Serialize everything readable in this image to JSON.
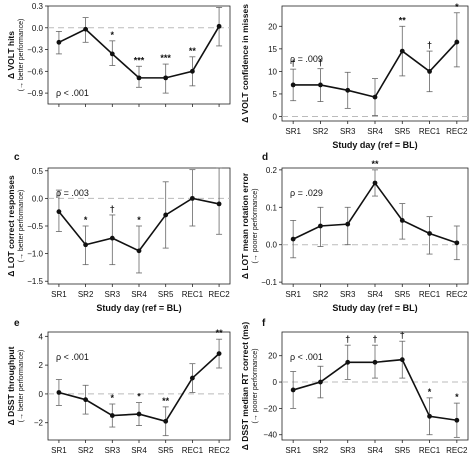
{
  "figure": {
    "xlabel_shared": "Study day (ref = BL)"
  },
  "chart_data": [
    {
      "id": "a",
      "letter": "",
      "type": "line",
      "categories": [
        "SR1",
        "SR2",
        "SR3",
        "SR4",
        "SR5",
        "REC1",
        "REC2"
      ],
      "values": [
        -0.2,
        -0.02,
        -0.36,
        -0.69,
        -0.69,
        -0.6,
        0.02
      ],
      "err_low": [
        -0.36,
        -0.2,
        -0.52,
        -0.82,
        -0.9,
        -0.8,
        -0.25
      ],
      "err_high": [
        -0.05,
        0.14,
        -0.18,
        -0.53,
        -0.5,
        -0.4,
        0.28
      ],
      "sig": [
        "",
        "",
        "*",
        "***",
        "***",
        "**",
        ""
      ],
      "ylim": [
        -1.05,
        0.3
      ],
      "yticks": [
        -0.9,
        -0.6,
        -0.3,
        0.0,
        0.3
      ],
      "yticklabels": [
        "−0.9",
        "−0.6",
        "−0.3",
        "0.0",
        "0.3"
      ],
      "ylabel": "Δ VOLT hits",
      "ylabel2": "(→ better performance)",
      "pvalue": "ρ < .001",
      "show_xticks": false,
      "show_xlabel": false
    },
    {
      "id": "b",
      "letter": "",
      "type": "line",
      "categories": [
        "SR1",
        "SR2",
        "SR3",
        "SR4",
        "SR5",
        "REC1",
        "REC2"
      ],
      "values": [
        7,
        7,
        5.8,
        4.3,
        14.5,
        10,
        16.5
      ],
      "err_low": [
        3.5,
        3.3,
        1.8,
        0.2,
        9,
        5.5,
        11
      ],
      "err_high": [
        10.5,
        10.6,
        9.8,
        8.4,
        20,
        14.5,
        23
      ],
      "sig": [
        "†",
        "†",
        "",
        "",
        "**",
        "†",
        "*"
      ],
      "ylim": [
        -1,
        24.5
      ],
      "yticks": [
        0,
        5,
        10,
        15,
        20
      ],
      "yticklabels": [
        "0",
        "5",
        "10",
        "15",
        "20"
      ],
      "ylabel": "Δ VOLT confidence in misses",
      "ylabel2": "",
      "pvalue": "ρ = .009",
      "show_xticks": true,
      "show_xlabel": true
    },
    {
      "id": "c",
      "letter": "c",
      "type": "line",
      "categories": [
        "SR1",
        "SR2",
        "SR3",
        "SR4",
        "SR5",
        "REC1",
        "REC2"
      ],
      "values": [
        -0.24,
        -0.84,
        -0.72,
        -0.95,
        -0.3,
        0.0,
        -0.1
      ],
      "err_low": [
        -0.6,
        -1.2,
        -1.2,
        -1.35,
        -0.9,
        -0.5,
        -0.65
      ],
      "err_high": [
        0.15,
        -0.5,
        -0.3,
        -0.5,
        0.3,
        0.52,
        0.55
      ],
      "sig": [
        "",
        "*",
        "†",
        "*",
        "",
        "",
        ""
      ],
      "ylim": [
        -1.55,
        0.55
      ],
      "yticks": [
        -1.5,
        -1.0,
        -0.5,
        0.0,
        0.5
      ],
      "yticklabels": [
        "−1.5",
        "−1.0",
        "−0.5",
        "0.0",
        "0.5"
      ],
      "ylabel": "Δ LOT correct responses",
      "ylabel2": "(→ better performance)",
      "pvalue": "ρ = .003",
      "show_xticks": true,
      "show_xlabel": true
    },
    {
      "id": "d",
      "letter": "d",
      "type": "line",
      "categories": [
        "SR1",
        "SR2",
        "SR3",
        "SR4",
        "SR5",
        "REC1",
        "REC2"
      ],
      "values": [
        0.015,
        0.05,
        0.055,
        0.165,
        0.065,
        0.03,
        0.005
      ],
      "err_low": [
        -0.035,
        -0.005,
        0.0,
        0.13,
        0.015,
        -0.025,
        -0.04
      ],
      "err_high": [
        0.065,
        0.1,
        0.1,
        0.2,
        0.11,
        0.075,
        0.05
      ],
      "sig": [
        "",
        "",
        "",
        "**",
        "",
        "",
        ""
      ],
      "ylim": [
        -0.105,
        0.205
      ],
      "yticks": [
        -0.1,
        0.0,
        0.1,
        0.2
      ],
      "yticklabels": [
        "−0.1",
        "0.0",
        "0.1",
        "0.2"
      ],
      "ylabel": "Δ LOT mean rotation error",
      "ylabel2": "(→ poorer performance)",
      "pvalue": "ρ = .029",
      "show_xticks": true,
      "show_xlabel": true
    },
    {
      "id": "e",
      "letter": "e",
      "type": "line",
      "categories": [
        "SR1",
        "SR2",
        "SR3",
        "SR4",
        "SR5",
        "REC1",
        "REC2"
      ],
      "values": [
        0.1,
        -0.4,
        -1.5,
        -1.4,
        -1.9,
        1.1,
        2.8
      ],
      "err_low": [
        -0.8,
        -1.4,
        -2.3,
        -2.2,
        -2.9,
        0.1,
        1.8
      ],
      "err_high": [
        1.0,
        0.6,
        -0.7,
        -0.6,
        -0.9,
        2.1,
        3.8
      ],
      "sig": [
        "",
        "",
        "*",
        "*",
        "**",
        "",
        "**"
      ],
      "ylim": [
        -3.2,
        4.3
      ],
      "yticks": [
        -2,
        0,
        2,
        4
      ],
      "yticklabels": [
        "−2",
        "0",
        "2",
        "4"
      ],
      "ylabel": "Δ DSST throughput",
      "ylabel2": "(→ better performance)",
      "pvalue": "ρ < .001",
      "show_xticks": true,
      "show_xlabel": false
    },
    {
      "id": "f",
      "letter": "f",
      "type": "line",
      "categories": [
        "SR1",
        "SR2",
        "SR3",
        "SR4",
        "SR5",
        "REC1",
        "REC2"
      ],
      "values": [
        -6,
        0,
        15,
        15,
        17,
        -26,
        -29
      ],
      "err_low": [
        -20,
        -12,
        2,
        3,
        3,
        -40,
        -42
      ],
      "err_high": [
        8,
        12,
        28,
        28,
        31,
        -12,
        -16
      ],
      "sig": [
        "",
        "",
        "†",
        "†",
        "†",
        "*",
        "*"
      ],
      "ylim": [
        -44,
        38
      ],
      "yticks": [
        -40,
        -20,
        0,
        20
      ],
      "yticklabels": [
        "−40",
        "−20",
        "0",
        "20"
      ],
      "ylabel": "Δ DSST median RT correct (ms)",
      "ylabel2": "(→ poorer performance)",
      "pvalue": "ρ < .001",
      "show_xticks": true,
      "show_xlabel": false
    }
  ],
  "colors": {
    "line": "#111111",
    "zero_line": "#bbbbbb",
    "axis": "#222222"
  }
}
